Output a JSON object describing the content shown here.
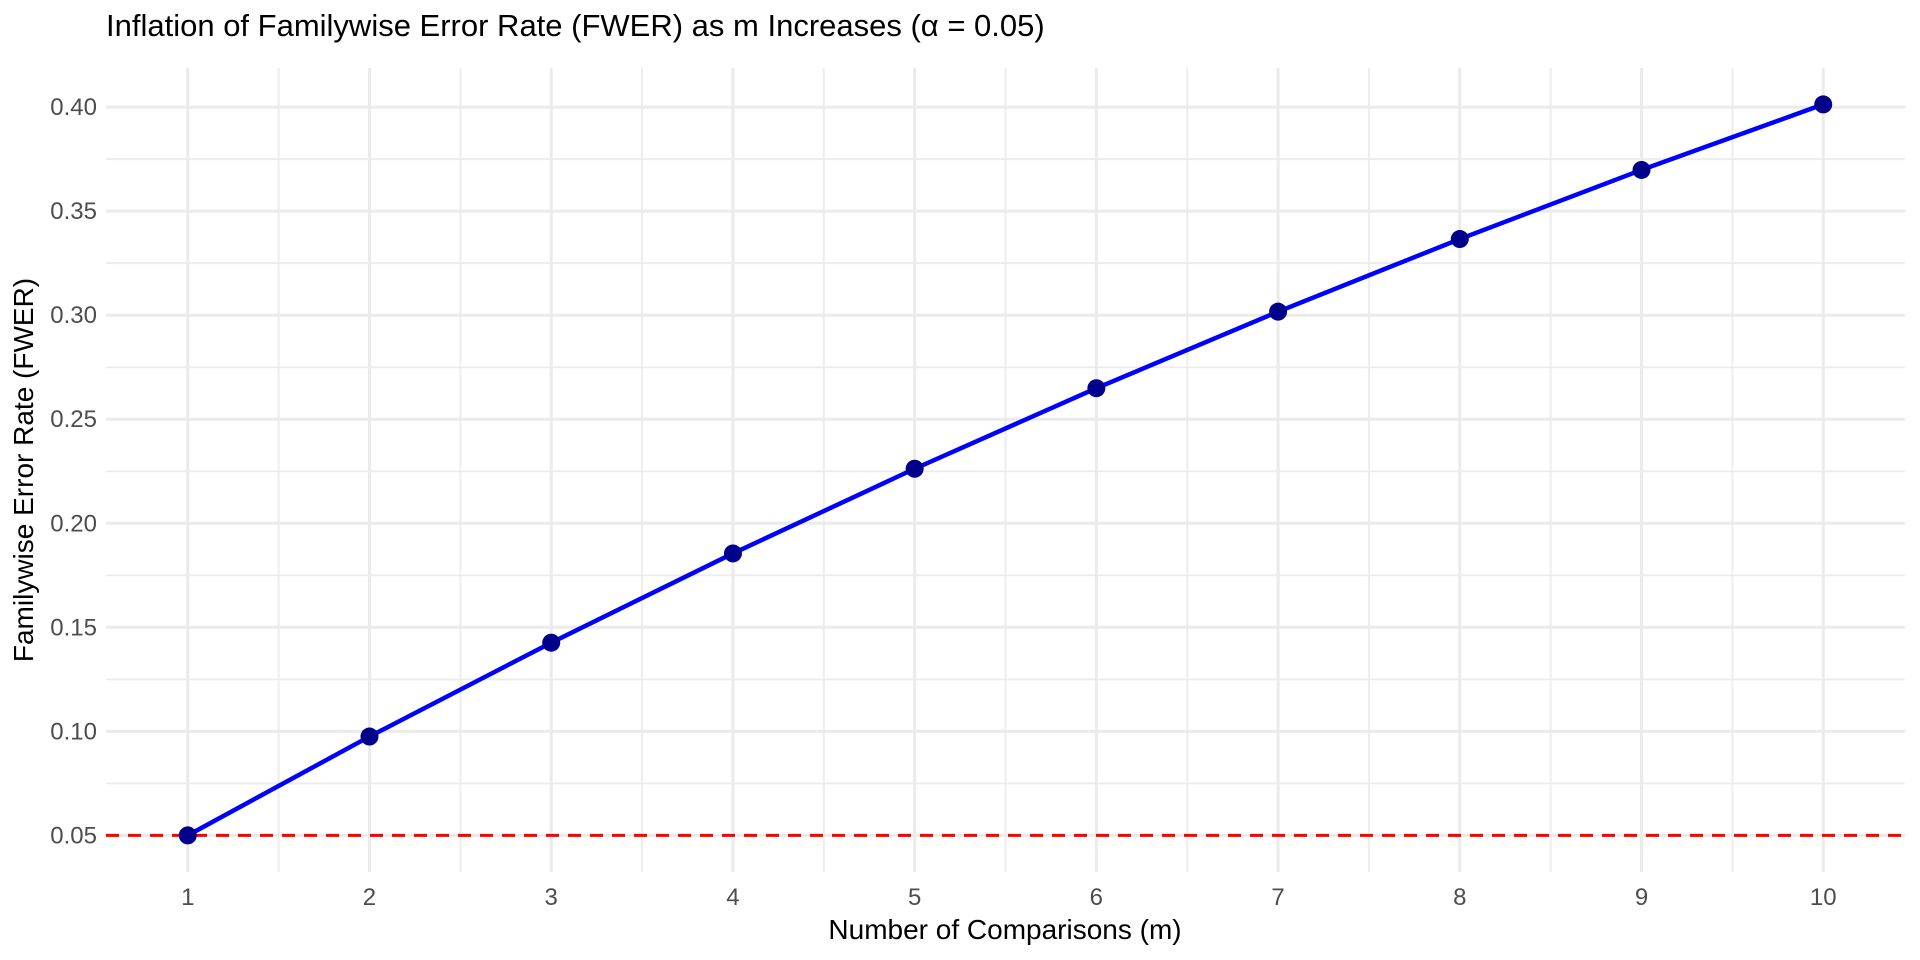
{
  "page": {
    "background": "#FFFFFF"
  },
  "chart_data": {
    "type": "line",
    "title": "Inflation of Familywise Error Rate (FWER) as m Increases (α = 0.05)",
    "xlabel": "Number of Comparisons (m)",
    "ylabel": "Familywise Error Rate (FWER)",
    "x": [
      1,
      2,
      3,
      4,
      5,
      6,
      7,
      8,
      9,
      10
    ],
    "series": [
      {
        "name": "FWER",
        "values": [
          0.05,
          0.0975,
          0.1426,
          0.1855,
          0.2262,
          0.2649,
          0.3017,
          0.3366,
          0.3698,
          0.4013
        ]
      }
    ],
    "reference_line": {
      "y": 0.05,
      "style": "dashed",
      "color": "#FF0000"
    },
    "x_ticks": [
      {
        "value": 1,
        "label": "1"
      },
      {
        "value": 2,
        "label": "2"
      },
      {
        "value": 3,
        "label": "3"
      },
      {
        "value": 4,
        "label": "4"
      },
      {
        "value": 5,
        "label": "5"
      },
      {
        "value": 6,
        "label": "6"
      },
      {
        "value": 7,
        "label": "7"
      },
      {
        "value": 8,
        "label": "8"
      },
      {
        "value": 9,
        "label": "9"
      },
      {
        "value": 10,
        "label": "10"
      }
    ],
    "y_ticks": [
      {
        "value": 0.05,
        "label": "0.05"
      },
      {
        "value": 0.1,
        "label": "0.10"
      },
      {
        "value": 0.15,
        "label": "0.15"
      },
      {
        "value": 0.2,
        "label": "0.20"
      },
      {
        "value": 0.25,
        "label": "0.25"
      },
      {
        "value": 0.3,
        "label": "0.30"
      },
      {
        "value": 0.35,
        "label": "0.35"
      },
      {
        "value": 0.4,
        "label": "0.40"
      }
    ],
    "xlim": [
      0.55,
      10.45
    ],
    "ylim": [
      0.0324,
      0.4188
    ],
    "grid": "major+minor",
    "legend": "none",
    "colors": {
      "line": "#0000FF",
      "point": "#00008B",
      "grid_major": "#EBEBEB",
      "grid_minor": "#EDEDED",
      "tick_text": "#4D4D4D",
      "reference": "#FF0000",
      "background": "#FFFFFF"
    }
  }
}
